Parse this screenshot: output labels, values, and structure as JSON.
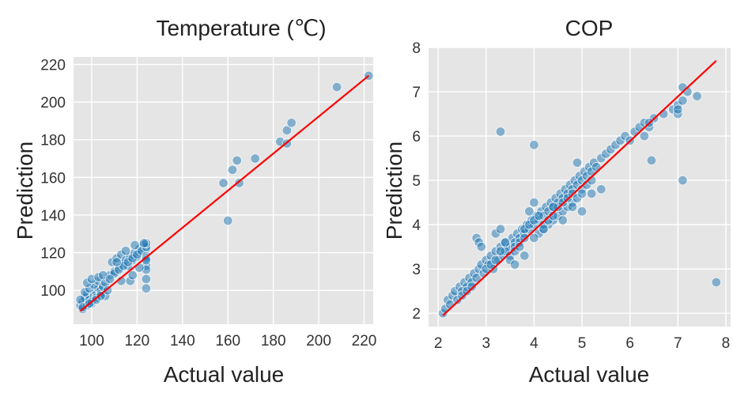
{
  "chart_data": [
    {
      "type": "scatter",
      "title": "Temperature (℃)",
      "xlabel": "Actual value",
      "ylabel": "Prediction",
      "xlim": [
        92,
        224
      ],
      "ylim": [
        82,
        224
      ],
      "xticks": [
        100,
        120,
        140,
        160,
        180,
        200,
        220
      ],
      "yticks": [
        100,
        120,
        140,
        160,
        180,
        200,
        220
      ],
      "grid": true,
      "colors": {
        "points": "#1f77b4",
        "line": "#ff0000",
        "background": "#e5e5e5"
      },
      "fit_line": {
        "x": [
          95,
          222
        ],
        "y": [
          89,
          214
        ]
      },
      "points": {
        "x": [
          95,
          96,
          97,
          98,
          99,
          100,
          101,
          102,
          103,
          104,
          96,
          98,
          100,
          102,
          104,
          106,
          97,
          99,
          101,
          103,
          105,
          95,
          98,
          100,
          103,
          106,
          108,
          110,
          112,
          114,
          116,
          118,
          120,
          122,
          124,
          109,
          111,
          113,
          115,
          117,
          119,
          121,
          123,
          110,
          112,
          114,
          116,
          118,
          120,
          122,
          124,
          124,
          124,
          124,
          124,
          124,
          124,
          105,
          107,
          113,
          117,
          124,
          160,
          162,
          164,
          165,
          158,
          172,
          183,
          186,
          186,
          188,
          208,
          222,
          96,
          99,
          102,
          104,
          108,
          111,
          115,
          119,
          123,
          124,
          121,
          118
        ],
        "y": [
          92,
          94,
          96,
          98,
          95,
          93,
          97,
          99,
          101,
          100,
          90,
          92,
          94,
          96,
          98,
          97,
          99,
          101,
          103,
          105,
          102,
          95,
          104,
          106,
          107,
          104,
          108,
          110,
          112,
          114,
          113,
          116,
          118,
          120,
          122,
          115,
          117,
          119,
          116,
          118,
          120,
          122,
          124,
          109,
          111,
          113,
          115,
          117,
          119,
          121,
          123,
          125,
          118,
          113,
          106,
          101,
          111,
          108,
          100,
          105,
          105,
          117,
          137,
          164,
          169,
          157,
          157,
          170,
          179,
          178,
          185,
          189,
          208,
          214,
          91,
          93,
          95,
          97,
          106,
          115,
          121,
          124,
          125,
          116,
          112,
          108
        ]
      }
    },
    {
      "type": "scatter",
      "title": "COP",
      "xlabel": "Actual value",
      "ylabel": "Prediction",
      "xlim": [
        1.8,
        8.1
      ],
      "ylim": [
        1.7,
        8.0
      ],
      "xticks": [
        2,
        3,
        4,
        5,
        6,
        7,
        8
      ],
      "yticks": [
        2,
        3,
        4,
        5,
        6,
        7,
        8
      ],
      "grid": true,
      "colors": {
        "points": "#1f77b4",
        "line": "#ff0000",
        "background": "#e5e5e5"
      },
      "fit_line": {
        "x": [
          2.1,
          7.8
        ],
        "y": [
          1.95,
          7.7
        ]
      },
      "points": {
        "x": [
          2.1,
          2.15,
          2.2,
          2.25,
          2.3,
          2.35,
          2.4,
          2.45,
          2.5,
          2.55,
          2.6,
          2.65,
          2.7,
          2.75,
          2.8,
          2.85,
          2.9,
          2.95,
          3.0,
          3.05,
          3.1,
          3.15,
          3.2,
          3.25,
          3.3,
          3.35,
          3.4,
          3.45,
          3.5,
          3.55,
          3.6,
          3.65,
          3.7,
          3.75,
          3.8,
          3.85,
          3.9,
          3.95,
          4.0,
          4.05,
          4.1,
          4.15,
          4.2,
          4.25,
          4.3,
          4.35,
          4.4,
          4.45,
          4.5,
          4.55,
          4.6,
          4.65,
          4.7,
          4.75,
          4.8,
          4.85,
          4.9,
          4.95,
          5.0,
          5.05,
          5.1,
          5.15,
          5.2,
          5.25,
          5.3,
          5.4,
          5.5,
          5.6,
          5.7,
          5.8,
          5.9,
          6.0,
          6.1,
          6.2,
          6.3,
          6.4,
          6.5,
          6.7,
          6.9,
          7.0,
          7.1,
          7.2,
          7.4,
          2.8,
          2.85,
          2.9,
          3.2,
          3.3,
          3.4,
          3.5,
          3.6,
          3.7,
          3.8,
          3.9,
          4.0,
          4.1,
          4.2,
          4.3,
          4.4,
          4.5,
          4.6,
          4.7,
          4.8,
          4.9,
          5.0,
          5.1,
          5.2,
          3.0,
          3.1,
          3.2,
          3.3,
          3.4,
          3.5,
          3.6,
          3.7,
          3.8,
          3.9,
          4.0,
          4.1,
          4.2,
          4.3,
          4.4,
          4.5,
          4.6,
          4.7,
          4.8,
          4.9,
          5.0,
          2.5,
          2.6,
          2.7,
          3.6,
          3.8,
          4.0,
          4.2,
          4.4,
          4.6,
          4.8,
          5.0,
          5.2,
          5.4,
          6.3,
          6.4,
          7.0,
          7.0,
          7.1,
          3.3,
          4.0,
          7.1,
          7.8,
          6.45
        ],
        "y": [
          2.0,
          2.1,
          2.3,
          2.2,
          2.4,
          2.5,
          2.3,
          2.6,
          2.5,
          2.7,
          2.6,
          2.8,
          2.7,
          2.9,
          2.8,
          3.0,
          3.1,
          2.9,
          3.2,
          3.1,
          3.3,
          3.0,
          3.4,
          3.2,
          3.5,
          3.3,
          3.6,
          3.4,
          3.5,
          3.7,
          3.6,
          3.8,
          3.7,
          3.9,
          3.8,
          4.0,
          3.9,
          4.1,
          4.0,
          4.2,
          4.1,
          4.3,
          4.2,
          4.4,
          4.3,
          4.5,
          4.4,
          4.6,
          4.5,
          4.7,
          4.6,
          4.8,
          4.7,
          4.9,
          4.8,
          5.0,
          4.9,
          5.1,
          5.0,
          5.2,
          5.1,
          5.3,
          5.2,
          5.4,
          5.3,
          5.5,
          5.6,
          5.7,
          5.8,
          5.9,
          6.0,
          5.9,
          6.1,
          6.2,
          6.3,
          6.2,
          6.4,
          6.5,
          6.6,
          6.7,
          6.8,
          7.0,
          6.9,
          3.7,
          3.6,
          3.5,
          3.8,
          3.9,
          3.4,
          3.3,
          3.5,
          3.6,
          3.7,
          4.3,
          4.5,
          3.8,
          3.9,
          4.0,
          4.1,
          4.2,
          4.3,
          4.4,
          4.5,
          5.4,
          4.8,
          4.9,
          5.0,
          3.0,
          3.1,
          3.2,
          3.4,
          3.6,
          3.2,
          3.4,
          3.5,
          3.9,
          4.0,
          4.1,
          4.2,
          4.0,
          4.1,
          4.2,
          4.4,
          4.5,
          4.6,
          4.7,
          4.6,
          4.7,
          2.4,
          2.5,
          2.6,
          3.1,
          3.3,
          3.7,
          3.9,
          4.4,
          4.1,
          4.4,
          4.3,
          4.7,
          4.8,
          6.0,
          6.3,
          6.5,
          6.6,
          7.1,
          6.1,
          5.8,
          5.0,
          2.7,
          5.45
        ]
      }
    }
  ]
}
